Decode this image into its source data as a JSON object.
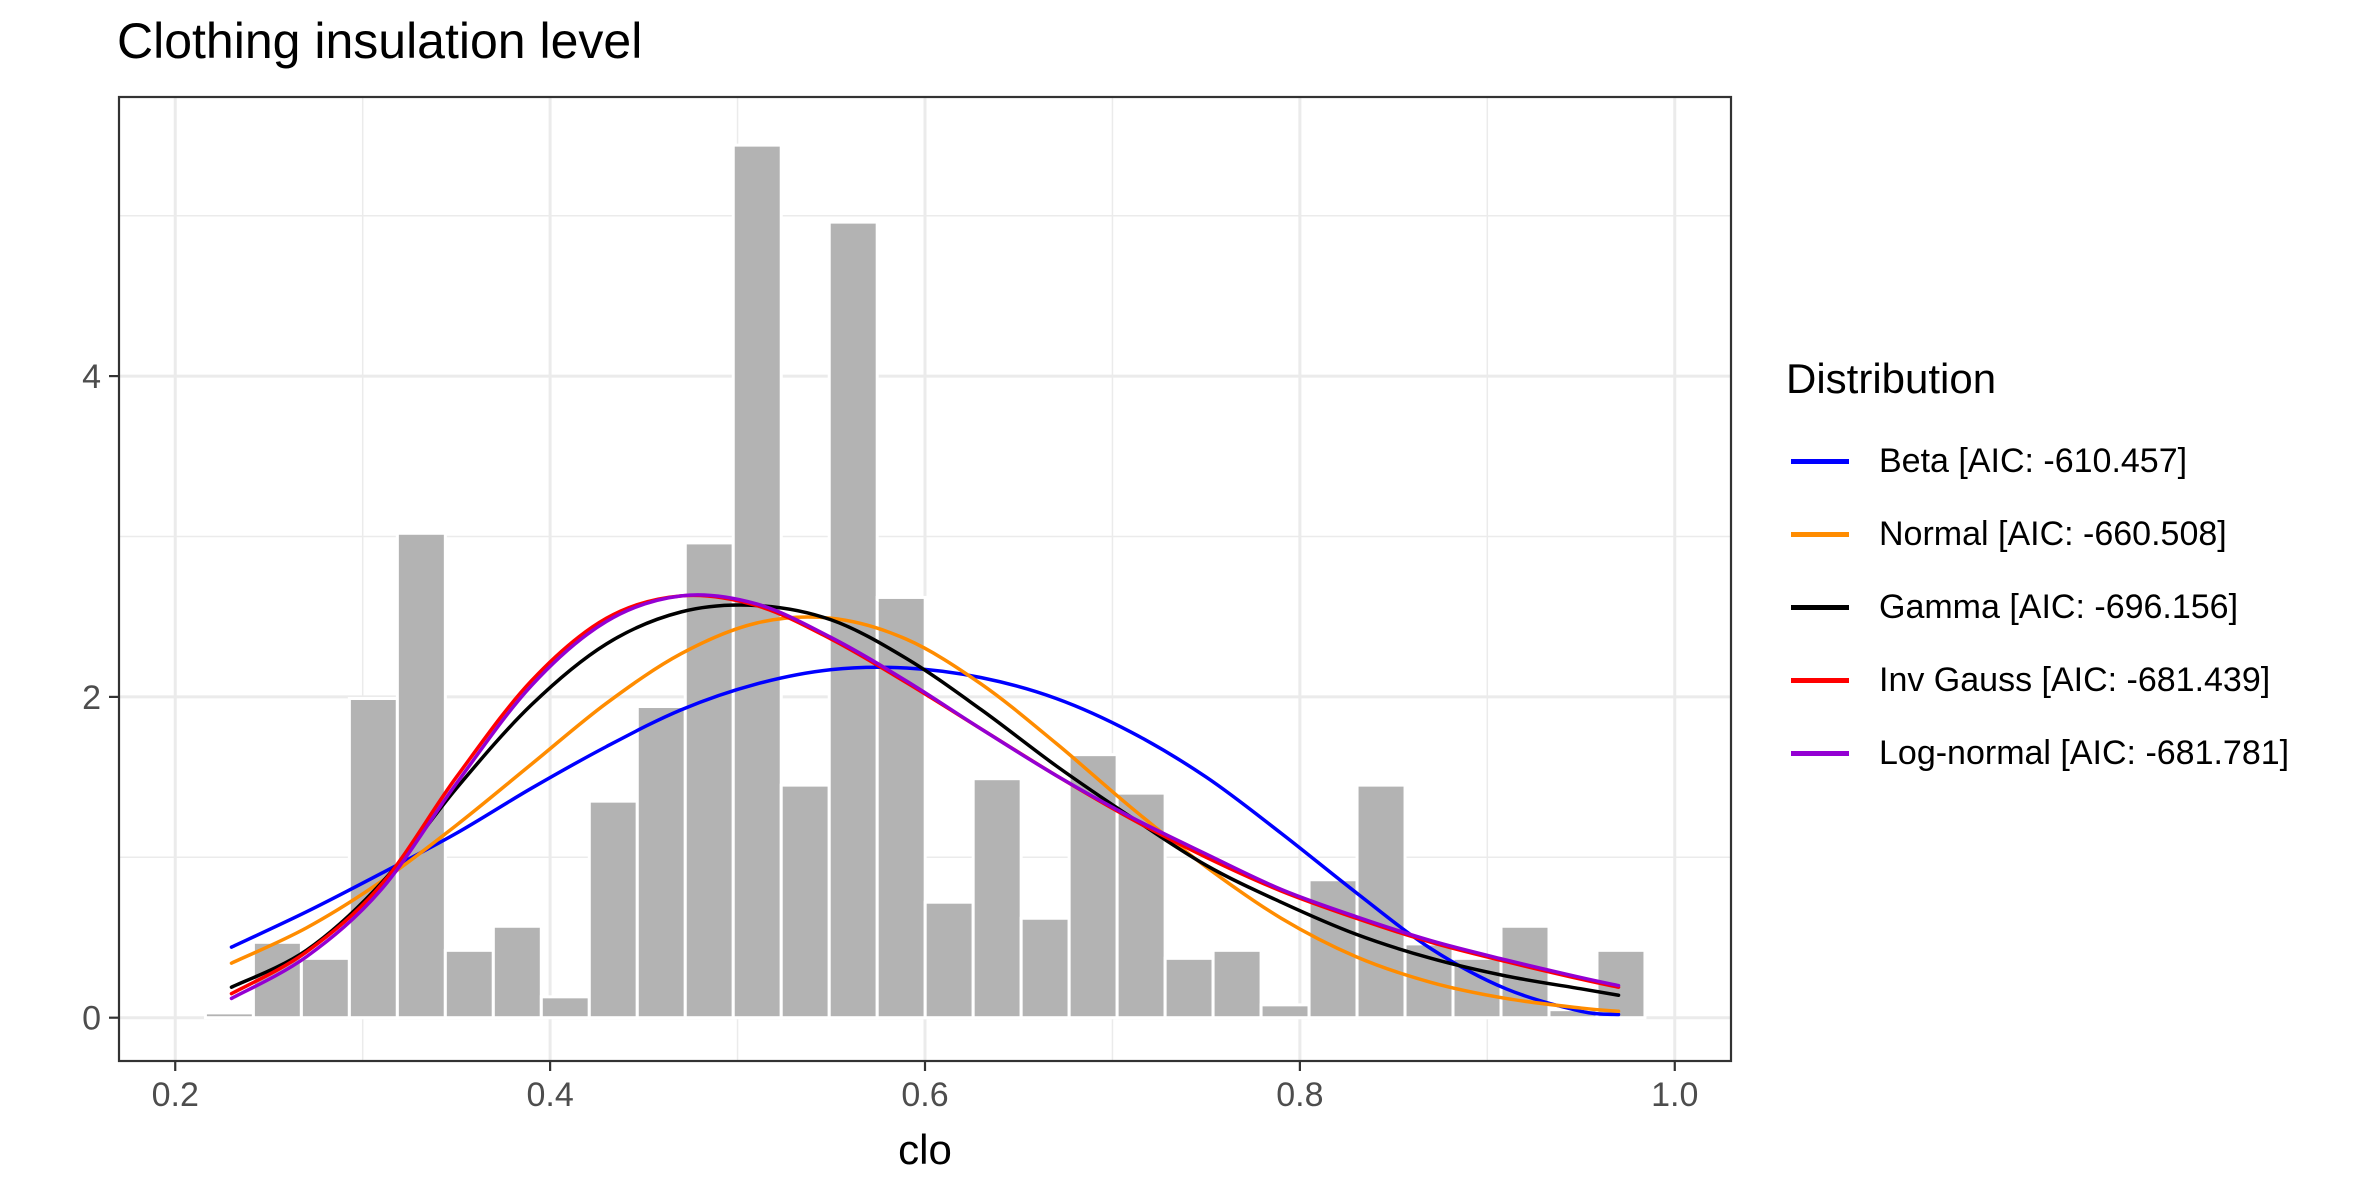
{
  "chart_data": {
    "type": "bar",
    "title": "Clothing insulation level",
    "xlabel": "clo",
    "ylabel": "",
    "xlim": [
      0.17,
      1.03
    ],
    "ylim": [
      -0.27,
      5.74
    ],
    "x_ticks": [
      0.2,
      0.4,
      0.6,
      0.8,
      1.0
    ],
    "x_tick_labels": [
      "0.2",
      "0.4",
      "0.6",
      "0.8",
      "1.0"
    ],
    "y_ticks": [
      0,
      2,
      4
    ],
    "y_tick_labels": [
      "0",
      "2",
      "4"
    ],
    "minor_x_ticks": [
      0.3,
      0.5,
      0.7,
      0.9
    ],
    "minor_y_ticks": [
      1,
      3,
      5
    ],
    "grid": true,
    "histogram": {
      "bin_width": 0.0256,
      "bin_centers": [
        0.2289,
        0.2545,
        0.2801,
        0.3057,
        0.3313,
        0.3569,
        0.3825,
        0.4081,
        0.4337,
        0.4593,
        0.4849,
        0.5105,
        0.5361,
        0.5617,
        0.5873,
        0.6129,
        0.6385,
        0.6641,
        0.6897,
        0.7153,
        0.7409,
        0.7665,
        0.7921,
        0.8177,
        0.8433,
        0.8689,
        0.8945,
        0.9201,
        0.9457,
        0.9713
      ],
      "density": [
        0.03,
        0.47,
        0.37,
        1.99,
        3.02,
        0.42,
        0.57,
        0.13,
        1.35,
        1.94,
        2.96,
        5.44,
        1.45,
        4.96,
        2.62,
        0.72,
        1.49,
        0.62,
        1.64,
        1.4,
        0.37,
        0.42,
        0.08,
        0.86,
        1.45,
        0.46,
        0.37,
        0.57,
        0.05,
        0.42
      ],
      "color": "#b3b3b3"
    },
    "series": [
      {
        "name": "Beta [AIC: -610.457]",
        "color": "#0000ff",
        "x": [
          0.23,
          0.27,
          0.31,
          0.35,
          0.39,
          0.43,
          0.47,
          0.51,
          0.55,
          0.59,
          0.63,
          0.67,
          0.71,
          0.75,
          0.79,
          0.83,
          0.87,
          0.91,
          0.95,
          0.97
        ],
        "y": [
          0.44,
          0.66,
          0.9,
          1.15,
          1.43,
          1.69,
          1.92,
          2.08,
          2.17,
          2.18,
          2.12,
          1.99,
          1.78,
          1.5,
          1.15,
          0.78,
          0.43,
          0.18,
          0.04,
          0.02
        ]
      },
      {
        "name": "Normal [AIC: -660.508]",
        "color": "#ff8c00",
        "x": [
          0.23,
          0.27,
          0.31,
          0.35,
          0.39,
          0.43,
          0.47,
          0.51,
          0.55,
          0.59,
          0.63,
          0.67,
          0.71,
          0.75,
          0.79,
          0.83,
          0.87,
          0.91,
          0.95,
          0.97
        ],
        "y": [
          0.34,
          0.56,
          0.85,
          1.2,
          1.58,
          1.96,
          2.27,
          2.46,
          2.49,
          2.36,
          2.08,
          1.71,
          1.31,
          0.94,
          0.62,
          0.38,
          0.22,
          0.12,
          0.06,
          0.04
        ]
      },
      {
        "name": "Gamma [AIC: -696.156]",
        "color": "#000000",
        "x": [
          0.23,
          0.27,
          0.31,
          0.35,
          0.39,
          0.43,
          0.47,
          0.51,
          0.55,
          0.59,
          0.63,
          0.67,
          0.71,
          0.75,
          0.79,
          0.83,
          0.87,
          0.91,
          0.95,
          0.97
        ],
        "y": [
          0.19,
          0.42,
          0.84,
          1.43,
          1.95,
          2.33,
          2.53,
          2.57,
          2.48,
          2.24,
          1.92,
          1.57,
          1.25,
          0.95,
          0.72,
          0.52,
          0.37,
          0.26,
          0.18,
          0.14
        ]
      },
      {
        "name": "Inv Gauss [AIC: -681.439]",
        "color": "#ff0000",
        "x": [
          0.23,
          0.27,
          0.31,
          0.35,
          0.39,
          0.43,
          0.47,
          0.51,
          0.55,
          0.59,
          0.63,
          0.67,
          0.71,
          0.75,
          0.79,
          0.83,
          0.87,
          0.91,
          0.95,
          0.97
        ],
        "y": [
          0.15,
          0.41,
          0.83,
          1.5,
          2.1,
          2.49,
          2.63,
          2.57,
          2.36,
          2.09,
          1.8,
          1.51,
          1.24,
          1.0,
          0.79,
          0.62,
          0.47,
          0.35,
          0.24,
          0.19
        ]
      },
      {
        "name": "Log-normal [AIC: -681.781]",
        "color": "#9400d3",
        "x": [
          0.23,
          0.27,
          0.31,
          0.35,
          0.39,
          0.43,
          0.47,
          0.51,
          0.55,
          0.59,
          0.63,
          0.67,
          0.71,
          0.75,
          0.79,
          0.83,
          0.87,
          0.91,
          0.95,
          0.97
        ],
        "y": [
          0.12,
          0.38,
          0.8,
          1.46,
          2.07,
          2.47,
          2.63,
          2.58,
          2.37,
          2.1,
          1.8,
          1.51,
          1.25,
          1.02,
          0.8,
          0.63,
          0.48,
          0.36,
          0.25,
          0.2
        ]
      }
    ],
    "legend": {
      "title": "Distribution",
      "position": "right"
    }
  }
}
